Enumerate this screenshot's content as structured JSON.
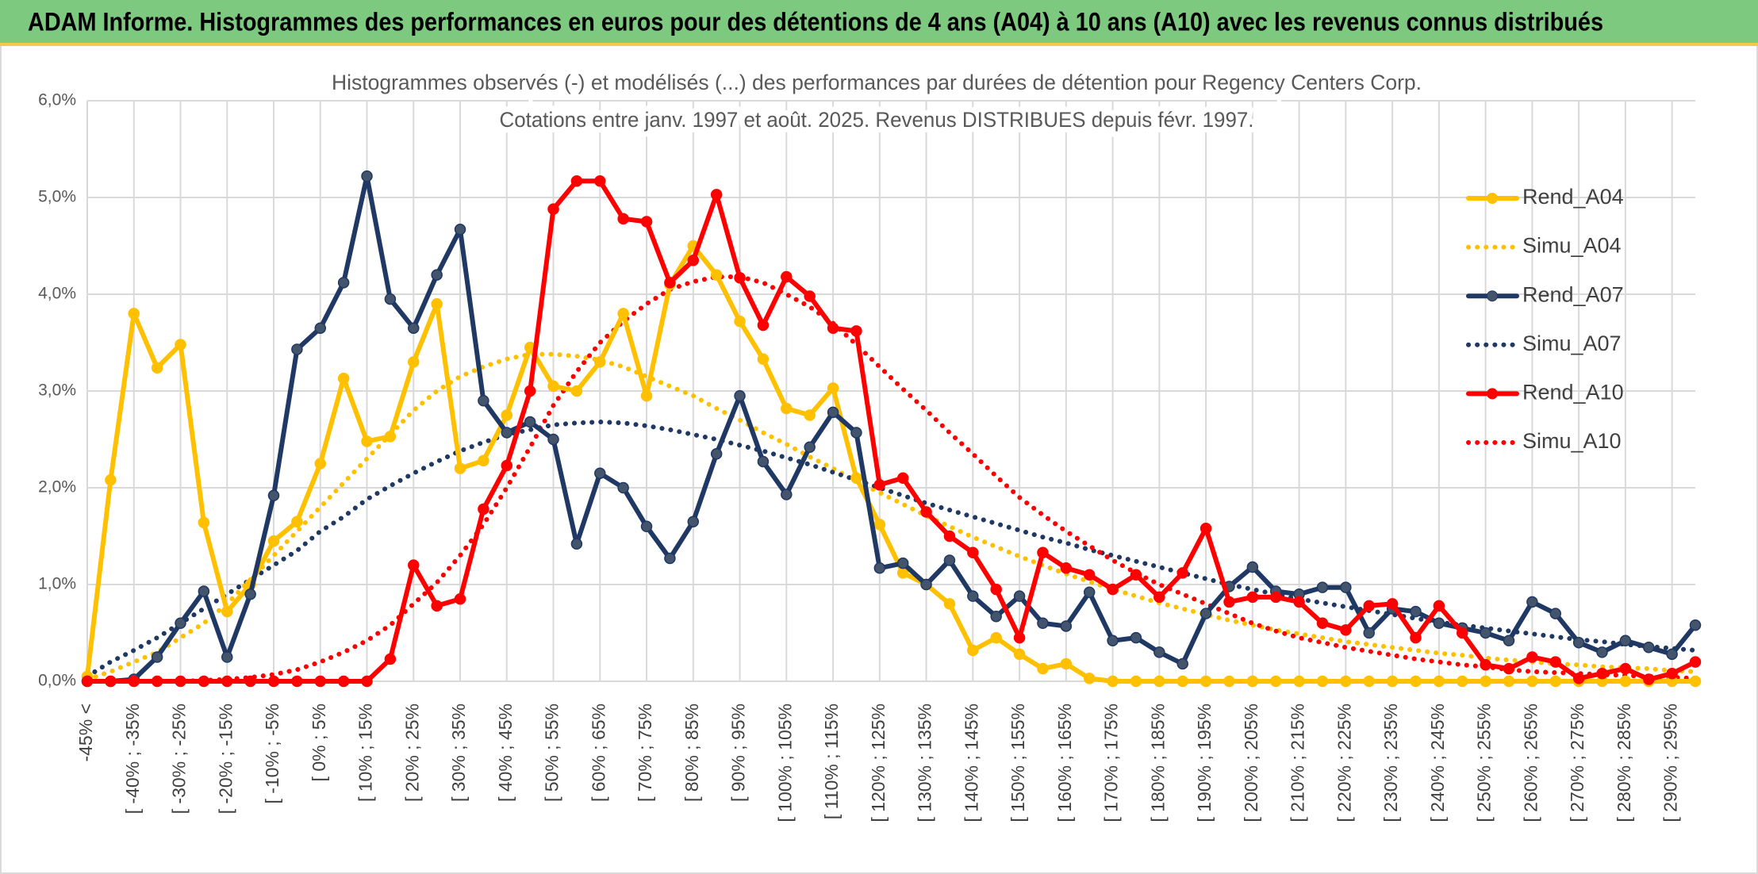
{
  "banner": "ADAM Informe. Histogrammes des performances en euros pour des détentions de 4 ans (A04) à 10 ans (A10) avec les revenus connus distribués",
  "chart_data": {
    "type": "line",
    "title": [
      "Histogrammes observés (-) et modélisés (...) des performances par durées de détention pour Regency Centers Corp.",
      "Cotations entre janv. 1997 et août. 2025. Revenus DISTRIBUES depuis févr. 1997."
    ],
    "categories": [
      "-45% <",
      null,
      "[ -40% ; -35%",
      null,
      "[ -30% ; -25%",
      null,
      "[ -20% ; -15%",
      null,
      "[ -10% ; -5%",
      null,
      "[ 0% ; 5%",
      null,
      "[ 10% ; 15%",
      null,
      "[ 20% ; 25%",
      null,
      "[ 30% ; 35%",
      null,
      "[ 40% ; 45%",
      null,
      "[ 50% ; 55%",
      null,
      "[ 60% ; 65%",
      null,
      "[ 70% ; 75%",
      null,
      "[ 80% ; 85%",
      null,
      "[ 90% ; 95%",
      null,
      "[ 100% ; 105%",
      null,
      "[ 110% ; 115%",
      null,
      "[ 120% ; 125%",
      null,
      "[ 130% ; 135%",
      null,
      "[ 140% ; 145%",
      null,
      "[ 150% ; 155%",
      null,
      "[ 160% ; 165%",
      null,
      "[ 170% ; 175%",
      null,
      "[ 180% ; 185%",
      null,
      "[ 190% ; 195%",
      null,
      "[ 200% ; 205%",
      null,
      "[ 210% ; 215%",
      null,
      "[ 220% ; 225%",
      null,
      "[ 230% ; 235%",
      null,
      "[ 240% ; 245%",
      null,
      "[ 250% ; 255%",
      null,
      "[ 260% ; 265%",
      null,
      "[ 270% ; 275%",
      null,
      "[ 280% ; 285%",
      null,
      "[ 290% ; 295%",
      null
    ],
    "ylim": [
      0,
      6
    ],
    "yticks": [
      {
        "value": 0,
        "label": "0,0%"
      },
      {
        "value": 1,
        "label": "1,0%"
      },
      {
        "value": 2,
        "label": "2,0%"
      },
      {
        "value": 3,
        "label": "3,0%"
      },
      {
        "value": 4,
        "label": "4,0%"
      },
      {
        "value": 5,
        "label": "5,0%"
      },
      {
        "value": 6,
        "label": "6,0%"
      }
    ],
    "grid": true,
    "legend": "right",
    "series": [
      {
        "name": "Rend_A04",
        "color": "#FFC000",
        "style": "solid",
        "markers": true,
        "values": [
          0.05,
          2.08,
          3.8,
          3.24,
          3.48,
          1.64,
          0.72,
          1.0,
          1.45,
          1.65,
          2.25,
          3.13,
          2.48,
          2.53,
          3.3,
          3.9,
          2.2,
          2.28,
          2.75,
          3.45,
          3.05,
          3.0,
          3.3,
          3.8,
          2.95,
          4.1,
          4.5,
          4.2,
          3.72,
          3.33,
          2.82,
          2.75,
          3.03,
          2.1,
          1.62,
          1.12,
          1.0,
          0.8,
          0.32,
          0.45,
          0.28,
          0.13,
          0.18,
          0.03,
          0,
          0,
          0,
          0,
          0,
          0,
          0,
          0,
          0,
          0,
          0,
          0,
          0,
          0,
          0,
          0,
          0,
          0,
          0,
          0,
          0,
          0,
          0,
          0,
          0,
          0
        ]
      },
      {
        "name": "Simu_A04",
        "color": "#FFC000",
        "style": "dotted",
        "markers": false,
        "values": [
          0.02,
          0.1,
          0.2,
          0.3,
          0.45,
          0.6,
          0.8,
          1.05,
          1.3,
          1.55,
          1.8,
          2.05,
          2.3,
          2.55,
          2.8,
          3.0,
          3.15,
          3.25,
          3.33,
          3.38,
          3.38,
          3.36,
          3.32,
          3.25,
          3.15,
          3.05,
          2.95,
          2.82,
          2.7,
          2.57,
          2.45,
          2.32,
          2.2,
          2.07,
          1.95,
          1.83,
          1.71,
          1.6,
          1.49,
          1.39,
          1.29,
          1.2,
          1.11,
          1.03,
          0.95,
          0.88,
          0.81,
          0.75,
          0.69,
          0.63,
          0.58,
          0.53,
          0.49,
          0.45,
          0.41,
          0.38,
          0.35,
          0.32,
          0.29,
          0.27,
          0.24,
          0.22,
          0.2,
          0.18,
          0.17,
          0.15,
          0.14,
          0.13,
          0.11,
          0.1
        ]
      },
      {
        "name": "Rend_A07",
        "color": "#1F3864",
        "style": "solid",
        "markers": true,
        "values": [
          0,
          0,
          0.02,
          0.25,
          0.6,
          0.93,
          0.25,
          0.9,
          1.92,
          3.43,
          3.65,
          4.12,
          5.22,
          3.95,
          3.65,
          4.2,
          4.67,
          2.9,
          2.57,
          2.68,
          2.5,
          1.42,
          2.15,
          2.0,
          1.6,
          1.27,
          1.65,
          2.35,
          2.95,
          2.27,
          1.93,
          2.42,
          2.78,
          2.57,
          1.17,
          1.22,
          1.0,
          1.25,
          0.88,
          0.67,
          0.88,
          0.6,
          0.57,
          0.92,
          0.42,
          0.45,
          0.3,
          0.18,
          0.7,
          0.98,
          1.18,
          0.93,
          0.9,
          0.97,
          0.97,
          0.5,
          0.75,
          0.72,
          0.6,
          0.55,
          0.5,
          0.42,
          0.82,
          0.7,
          0.4,
          0.3,
          0.42,
          0.35,
          0.28,
          0.58
        ]
      },
      {
        "name": "Simu_A07",
        "color": "#1F3864",
        "style": "dotted",
        "markers": false,
        "values": [
          0.05,
          0.2,
          0.32,
          0.45,
          0.6,
          0.75,
          0.9,
          1.05,
          1.2,
          1.35,
          1.55,
          1.7,
          1.88,
          2.02,
          2.15,
          2.27,
          2.38,
          2.47,
          2.55,
          2.6,
          2.65,
          2.67,
          2.68,
          2.67,
          2.64,
          2.6,
          2.55,
          2.5,
          2.44,
          2.38,
          2.31,
          2.24,
          2.16,
          2.08,
          2.0,
          1.92,
          1.84,
          1.77,
          1.7,
          1.63,
          1.56,
          1.49,
          1.43,
          1.36,
          1.3,
          1.24,
          1.18,
          1.12,
          1.06,
          1.0,
          0.95,
          0.9,
          0.85,
          0.81,
          0.77,
          0.73,
          0.69,
          0.65,
          0.61,
          0.58,
          0.55,
          0.52,
          0.49,
          0.46,
          0.43,
          0.41,
          0.38,
          0.36,
          0.34,
          0.32
        ]
      },
      {
        "name": "Rend_A10",
        "color": "#FF0000",
        "style": "solid",
        "markers": true,
        "values": [
          0,
          0,
          0,
          0,
          0,
          0,
          0,
          0,
          0,
          0,
          0,
          0,
          0,
          0.23,
          1.2,
          0.78,
          0.85,
          1.78,
          2.23,
          3.0,
          4.88,
          5.17,
          5.17,
          4.78,
          4.75,
          4.12,
          4.35,
          5.03,
          4.17,
          3.68,
          4.18,
          3.98,
          3.65,
          3.62,
          2.03,
          2.1,
          1.75,
          1.5,
          1.33,
          0.95,
          0.45,
          1.33,
          1.17,
          1.1,
          0.95,
          1.1,
          0.87,
          1.12,
          1.58,
          0.82,
          0.87,
          0.87,
          0.82,
          0.6,
          0.53,
          0.78,
          0.8,
          0.45,
          0.78,
          0.5,
          0.17,
          0.13,
          0.25,
          0.2,
          0.03,
          0.08,
          0.13,
          0.02,
          0.08,
          0.2
        ]
      },
      {
        "name": "Simu_A10",
        "color": "#FF0000",
        "style": "dotted",
        "markers": false,
        "values": [
          0,
          0,
          0,
          0,
          0,
          0.01,
          0.02,
          0.04,
          0.07,
          0.12,
          0.2,
          0.3,
          0.42,
          0.58,
          0.8,
          1.02,
          1.3,
          1.62,
          2.0,
          2.42,
          2.85,
          3.2,
          3.5,
          3.72,
          3.9,
          4.05,
          4.13,
          4.18,
          4.18,
          4.12,
          4.0,
          3.87,
          3.7,
          3.48,
          3.25,
          3.02,
          2.8,
          2.57,
          2.35,
          2.12,
          1.9,
          1.72,
          1.55,
          1.4,
          1.25,
          1.12,
          1.0,
          0.9,
          0.8,
          0.7,
          0.6,
          0.52,
          0.45,
          0.4,
          0.35,
          0.31,
          0.27,
          0.23,
          0.2,
          0.17,
          0.15,
          0.12,
          0.1,
          0.09,
          0.08,
          0.07,
          0.06,
          0.05,
          0.04,
          0.03
        ]
      }
    ]
  }
}
